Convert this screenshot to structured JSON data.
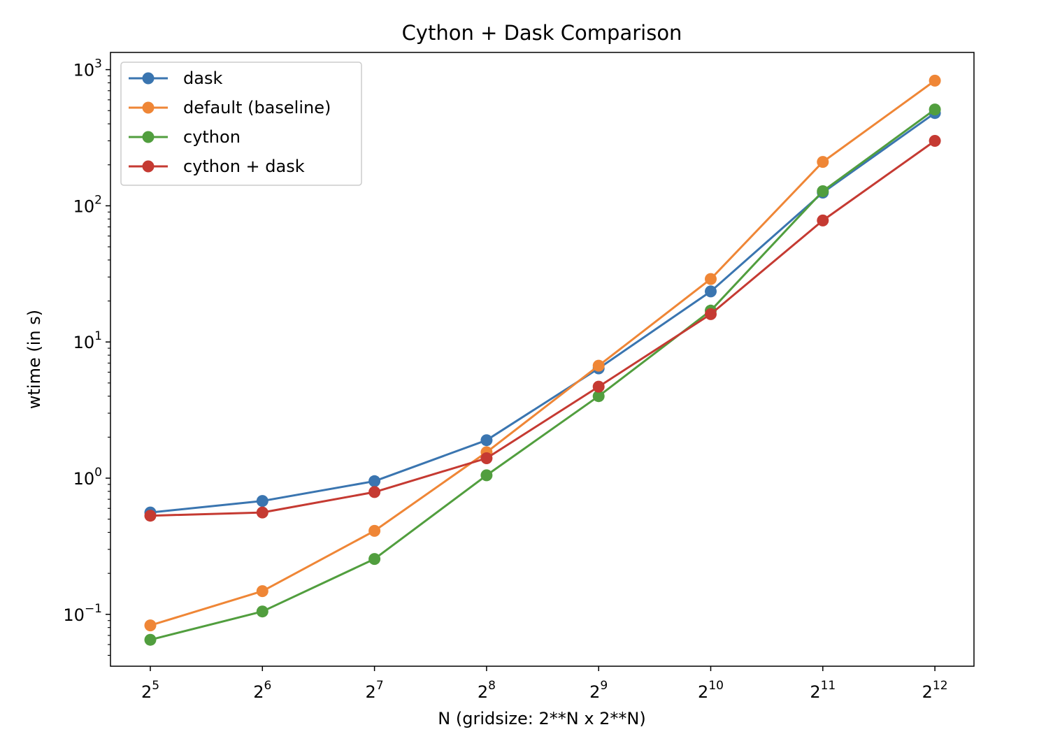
{
  "chart_data": {
    "type": "line",
    "title": "Cython + Dask Comparison",
    "xlabel": "N (gridsize: 2**N x 2**N)",
    "ylabel": "wtime (in s)",
    "yscale": "log",
    "xscale": "log2",
    "x": [
      32,
      64,
      128,
      256,
      512,
      1024,
      2048,
      4096
    ],
    "x_tick_labels": [
      {
        "base": "2",
        "exp": "5"
      },
      {
        "base": "2",
        "exp": "6"
      },
      {
        "base": "2",
        "exp": "7"
      },
      {
        "base": "2",
        "exp": "8"
      },
      {
        "base": "2",
        "exp": "9"
      },
      {
        "base": "2",
        "exp": "10"
      },
      {
        "base": "2",
        "exp": "11"
      },
      {
        "base": "2",
        "exp": "12"
      }
    ],
    "y_tick_labels": [
      {
        "base": "10",
        "exp": "−1",
        "value": 0.1
      },
      {
        "base": "10",
        "exp": "0",
        "value": 1
      },
      {
        "base": "10",
        "exp": "1",
        "value": 10
      },
      {
        "base": "10",
        "exp": "2",
        "value": 100
      },
      {
        "base": "10",
        "exp": "3",
        "value": 1000
      }
    ],
    "ylim": [
      0.042,
      1320
    ],
    "grid": false,
    "legend_position": "upper-left",
    "series": [
      {
        "name": "dask",
        "color": "#3a75b0",
        "values": [
          0.56,
          0.68,
          0.95,
          1.9,
          6.4,
          23.5,
          125,
          480
        ]
      },
      {
        "name": "default (baseline)",
        "color": "#ef8636",
        "values": [
          0.083,
          0.148,
          0.41,
          1.55,
          6.7,
          29,
          210,
          830
        ]
      },
      {
        "name": "cython",
        "color": "#519e3e",
        "values": [
          0.065,
          0.105,
          0.255,
          1.05,
          4.0,
          17,
          128,
          510
        ]
      },
      {
        "name": "cython + dask",
        "color": "#c53a32",
        "values": [
          0.53,
          0.56,
          0.79,
          1.4,
          4.7,
          16,
          78,
          300
        ]
      }
    ]
  }
}
